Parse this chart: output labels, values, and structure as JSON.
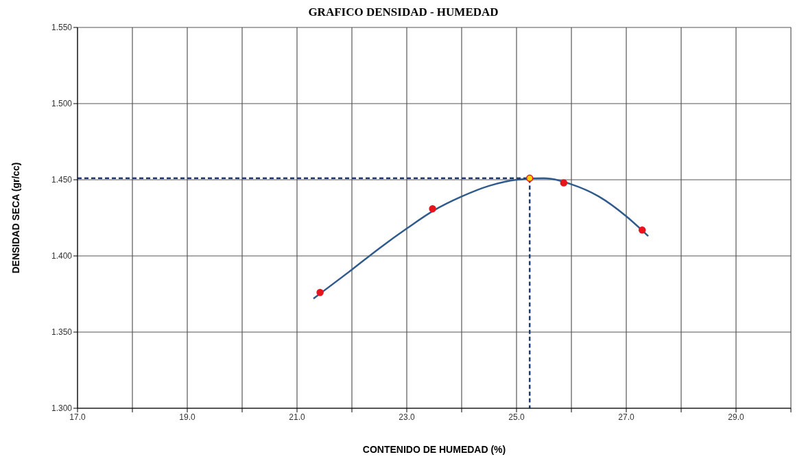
{
  "chart_data": {
    "type": "scatter",
    "title": "GRAFICO DENSIDAD - HUMEDAD",
    "xlabel": "CONTENIDO DE HUMEDAD (%)",
    "ylabel": "DENSIDAD SECA (gr/cc)",
    "series": [
      {
        "type": "line",
        "color": "#2f5a8c",
        "marker": "none",
        "line_style": "solid",
        "x": [
          21.3,
          22.0,
          22.5,
          23.0,
          23.5,
          24.0,
          24.5,
          25.0,
          25.5,
          26.0,
          26.5,
          27.0,
          27.4
        ],
        "values": [
          1.372,
          1.391,
          1.405,
          1.418,
          1.43,
          1.439,
          1.446,
          1.45,
          1.451,
          1.447,
          1.439,
          1.426,
          1.413
        ]
      },
      {
        "type": "line",
        "color": "#1f3a70",
        "marker": "none",
        "line_style": "dashed",
        "x": [
          17.0,
          25.24,
          25.24
        ],
        "values": [
          1.451,
          1.451,
          1.3
        ]
      },
      {
        "color": "#e8141c",
        "marker": "circle",
        "x": [
          21.42,
          23.47,
          25.86,
          27.29
        ],
        "values": [
          1.376,
          1.431,
          1.448,
          1.417
        ]
      },
      {
        "color": "#ffd700",
        "marker": "circle",
        "x": [
          25.24
        ],
        "values": [
          1.451
        ]
      }
    ],
    "xlim": [
      17,
      30
    ],
    "ylim": [
      1.3,
      1.55
    ],
    "xticks": [
      {
        "value": 17,
        "label": "17.0"
      },
      {
        "value": 18,
        "label": null
      },
      {
        "value": 19,
        "label": "19.0"
      },
      {
        "value": 20,
        "label": null
      },
      {
        "value": 21,
        "label": "21.0"
      },
      {
        "value": 22,
        "label": null
      },
      {
        "value": 23,
        "label": "23.0"
      },
      {
        "value": 24,
        "label": null
      },
      {
        "value": 25,
        "label": "25.0"
      },
      {
        "value": 26,
        "label": null
      },
      {
        "value": 27,
        "label": "27.0"
      },
      {
        "value": 28,
        "label": null
      },
      {
        "value": 29,
        "label": "29.0"
      },
      {
        "value": 30,
        "label": null
      }
    ],
    "yticks": [
      {
        "value": 1.3,
        "label": "1.300"
      },
      {
        "value": 1.35,
        "label": "1.350"
      },
      {
        "value": 1.4,
        "label": "1.400"
      },
      {
        "value": 1.45,
        "label": "1.450"
      },
      {
        "value": 1.5,
        "label": "1.500"
      },
      {
        "value": 1.55,
        "label": "1.550"
      }
    ],
    "grid": true
  }
}
